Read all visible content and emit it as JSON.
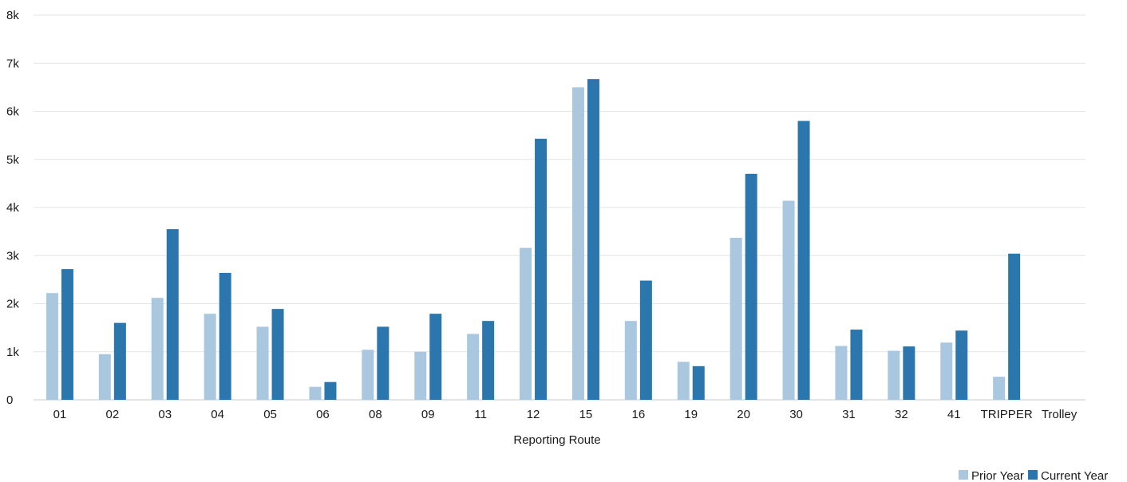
{
  "chart_data": {
    "type": "bar",
    "xlabel": "Reporting Route",
    "ylabel": "",
    "ylim": [
      0,
      8000
    ],
    "yticks": [
      0,
      1000,
      2000,
      3000,
      4000,
      5000,
      6000,
      7000,
      8000
    ],
    "ytick_labels": [
      "0",
      "1k",
      "2k",
      "3k",
      "4k",
      "5k",
      "6k",
      "7k",
      "8k"
    ],
    "grid": true,
    "legend_position": "bottom-right",
    "categories": [
      "01",
      "02",
      "03",
      "04",
      "05",
      "06",
      "08",
      "09",
      "11",
      "12",
      "15",
      "16",
      "19",
      "20",
      "30",
      "31",
      "32",
      "41",
      "TRIPPER",
      "Trolley"
    ],
    "series": [
      {
        "name": "Prior Year",
        "color": "#a9c7df",
        "values": [
          2220,
          950,
          2120,
          1790,
          1520,
          270,
          1040,
          1000,
          1370,
          3160,
          6500,
          1640,
          790,
          3370,
          4140,
          1120,
          1020,
          1190,
          480,
          0
        ]
      },
      {
        "name": "Current Year",
        "color": "#2b76ad",
        "values": [
          2720,
          1600,
          3550,
          2640,
          1890,
          370,
          1520,
          1790,
          1640,
          5430,
          6670,
          2480,
          700,
          4700,
          5800,
          1460,
          1110,
          1440,
          3040,
          0
        ]
      }
    ]
  }
}
